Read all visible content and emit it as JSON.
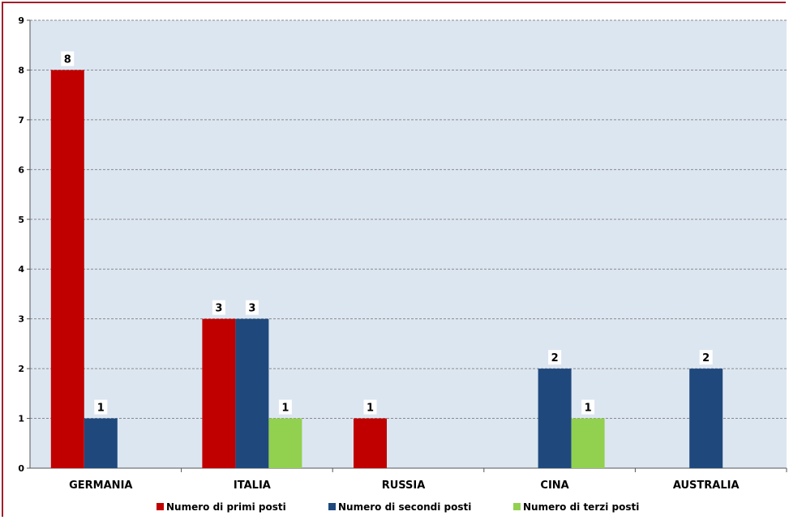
{
  "chart_data": {
    "type": "bar",
    "categories": [
      "GERMANIA",
      "ITALIA",
      "RUSSIA",
      "CINA",
      "AUSTRALIA"
    ],
    "series": [
      {
        "name": "Numero di primi posti",
        "color": "#c00000",
        "values": [
          8,
          3,
          1,
          0,
          0
        ]
      },
      {
        "name": "Numero di secondi posti",
        "color": "#1f497d",
        "values": [
          1,
          3,
          0,
          2,
          2
        ]
      },
      {
        "name": "Numero di terzi posti",
        "color": "#92d050",
        "values": [
          0,
          1,
          0,
          1,
          0
        ]
      }
    ],
    "ylim": [
      0,
      9
    ],
    "yticks": [
      0,
      1,
      2,
      3,
      4,
      5,
      6,
      7,
      8,
      9
    ],
    "grid": true,
    "legend_position": "bottom",
    "plot_background": "#dce6f1",
    "border_color": "#a0202a"
  }
}
